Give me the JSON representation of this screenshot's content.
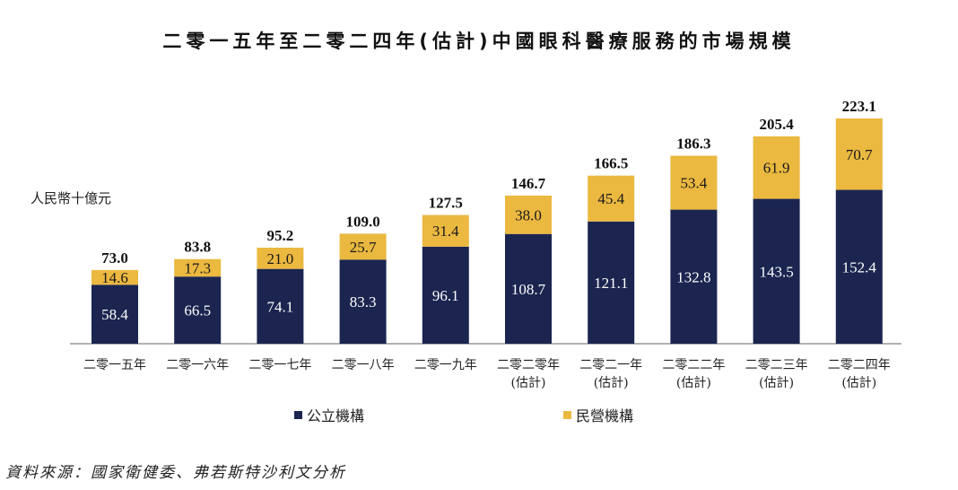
{
  "title": "二零一五年至二零二四年(估計)中國眼科醫療服務的市場規模",
  "unit": "人民幣十億元",
  "source": "資料來源：國家衛健委、弗若斯特沙利文分析",
  "colors": {
    "public": "#1b2550",
    "private": "#ebb840"
  },
  "chart_data": {
    "type": "bar",
    "stacked": true,
    "title": "二零一五年至二零二四年(估計)中國眼科醫療服務的市場規模",
    "ylabel": "人民幣十億元",
    "categories": [
      "二零一五年",
      "二零一六年",
      "二零一七年",
      "二零一八年",
      "二零一九年",
      "二零二零年\n(估計)",
      "二零二一年\n(估計)",
      "二零二二年\n(估計)",
      "二零二三年\n(估計)",
      "二零二四年\n(估計)"
    ],
    "series": [
      {
        "name": "公立機構",
        "values": [
          58.4,
          66.5,
          74.1,
          83.3,
          96.1,
          108.7,
          121.1,
          132.8,
          143.5,
          152.4
        ]
      },
      {
        "name": "民營機構",
        "values": [
          14.6,
          17.3,
          21.0,
          25.7,
          31.4,
          38.0,
          45.4,
          53.4,
          61.9,
          70.7
        ]
      }
    ],
    "totals": [
      "73.0",
      "83.8",
      "95.2",
      "109.0",
      "127.5",
      "146.7",
      "166.5",
      "186.3",
      "205.4",
      "223.1"
    ],
    "legend_position": "bottom",
    "grid": false
  }
}
